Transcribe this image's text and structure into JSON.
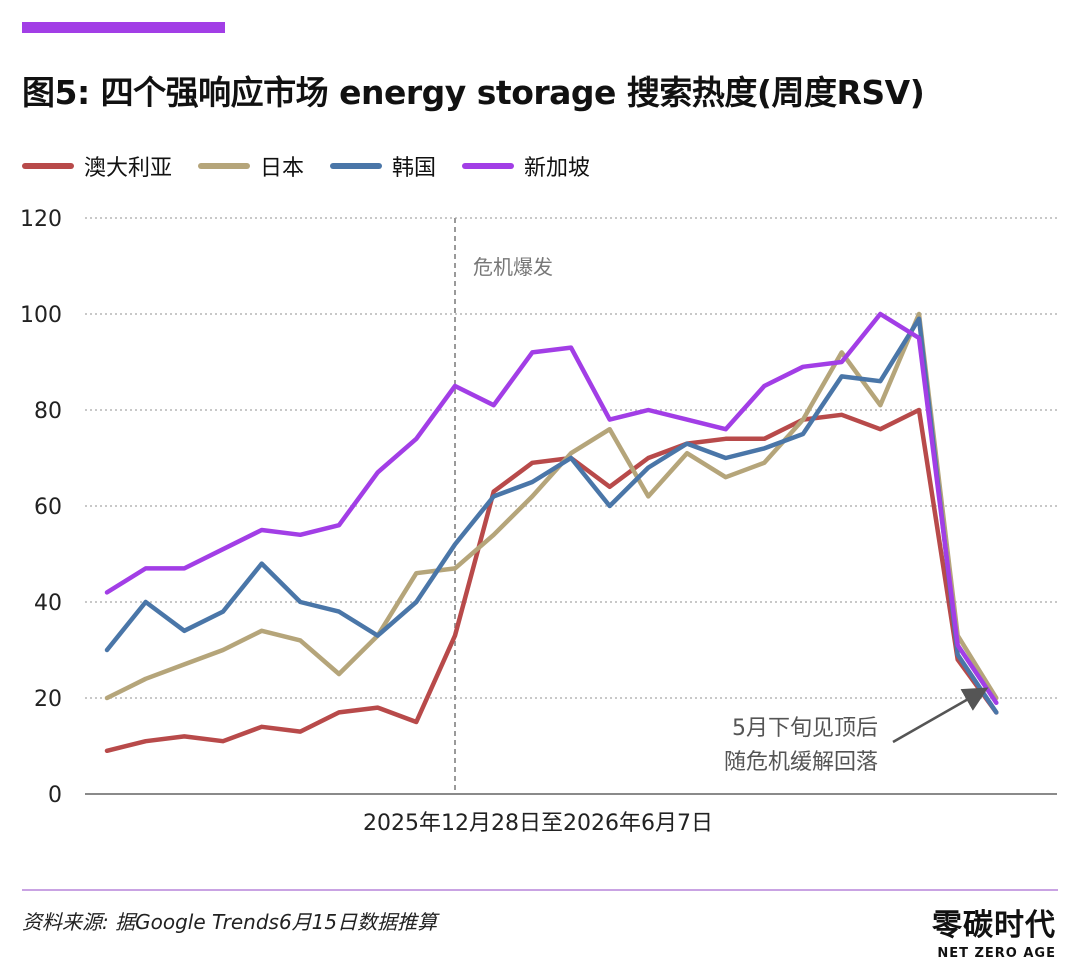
{
  "title": "图5: 四个强响应市场 energy storage 搜索热度(周度RSV)",
  "source": "资料来源: 据Google Trends6月15日数据推算",
  "logo": {
    "main": "零碳时代",
    "sub": "NET ZERO AGE"
  },
  "colors": {
    "accent": "#a23ee6",
    "grid": "#b5b5b5",
    "axis": "#8a8a8a",
    "vline": "#9a9a9a",
    "annotation": "#555555"
  },
  "chart_data": {
    "type": "line",
    "title": "图5: 四个强响应市场 energy storage 搜索热度(周度RSV)",
    "xlabel": "2025年12月28日至2026年6月7日",
    "ylabel": "",
    "ylim": [
      0,
      120
    ],
    "yticks": [
      "0",
      "20",
      "40",
      "60",
      "80",
      "100",
      "120"
    ],
    "grid": true,
    "legend_position": "top-left",
    "x": [
      1,
      2,
      3,
      4,
      5,
      6,
      7,
      8,
      9,
      10,
      11,
      12,
      13,
      14,
      15,
      16,
      17,
      18,
      19,
      20,
      21,
      22,
      23,
      24,
      25
    ],
    "series": [
      {
        "name": "澳大利亚",
        "color": "#b84a4a",
        "values": [
          9,
          11,
          12,
          11,
          14,
          13,
          17,
          18,
          15,
          33,
          63,
          69,
          70,
          64,
          70,
          73,
          74,
          74,
          78,
          79,
          76,
          80,
          28,
          17,
          null
        ]
      },
      {
        "name": "日本",
        "color": "#b5a57a",
        "values": [
          20,
          24,
          27,
          30,
          34,
          32,
          25,
          33,
          46,
          47,
          54,
          62,
          71,
          76,
          62,
          71,
          66,
          69,
          78,
          92,
          81,
          100,
          33,
          20,
          null
        ]
      },
      {
        "name": "韩国",
        "color": "#4a76a8",
        "values": [
          30,
          40,
          34,
          38,
          48,
          40,
          38,
          33,
          40,
          52,
          62,
          65,
          70,
          60,
          68,
          73,
          70,
          72,
          75,
          87,
          86,
          99,
          29,
          17,
          null
        ]
      },
      {
        "name": "新加坡",
        "color": "#a23ee6",
        "values": [
          42,
          47,
          47,
          51,
          55,
          54,
          56,
          67,
          74,
          85,
          81,
          92,
          93,
          78,
          80,
          78,
          76,
          85,
          89,
          90,
          100,
          95,
          31,
          19,
          null
        ]
      }
    ],
    "annotations": [
      {
        "text": "危机爆发",
        "at_x": 10
      },
      {
        "text": "5月下旬见顶后",
        "line2": "随危机缓解回落",
        "points_to_x": 23
      }
    ]
  }
}
